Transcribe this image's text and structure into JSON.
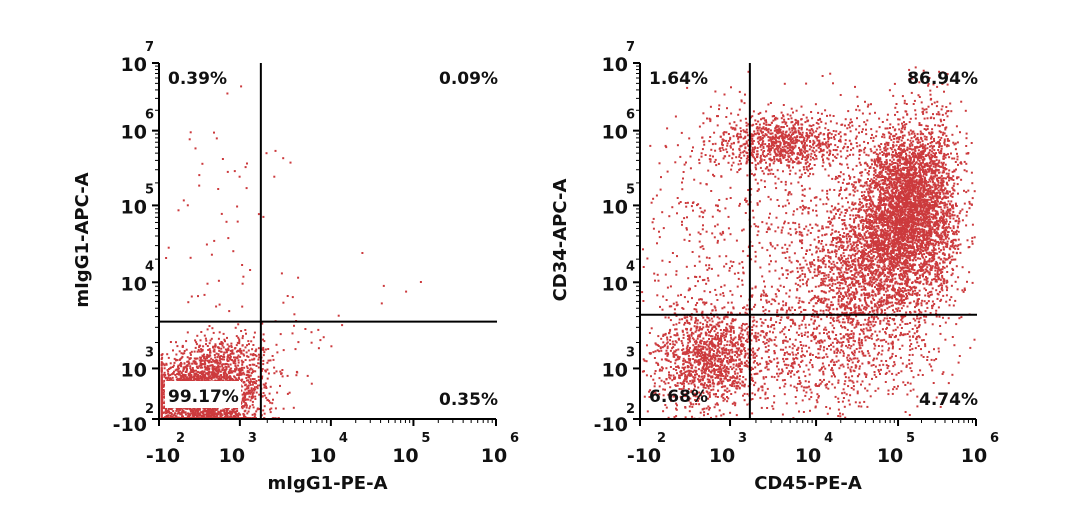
{
  "chart_data": [
    {
      "type": "scatter",
      "xlabel": "mIgG1-PE-A",
      "ylabel": "mIgG1-APC-A",
      "x_scale": "biexponential",
      "y_scale": "biexponential",
      "xlim": [
        -100,
        1000000
      ],
      "ylim": [
        -100,
        10000000
      ],
      "x_ticks": [
        {
          "base": "-10",
          "exp": "2"
        },
        {
          "base": "10",
          "exp": "3"
        },
        {
          "base": "10",
          "exp": "4"
        },
        {
          "base": "10",
          "exp": "5"
        },
        {
          "base": "10",
          "exp": "6"
        }
      ],
      "y_ticks": [
        {
          "base": "-10",
          "exp": "2"
        },
        {
          "base": "10",
          "exp": "3"
        },
        {
          "base": "10",
          "exp": "4"
        },
        {
          "base": "10",
          "exp": "5"
        },
        {
          "base": "10",
          "exp": "6"
        },
        {
          "base": "10",
          "exp": "7"
        }
      ],
      "gate": {
        "x": 1700,
        "y": 3500
      },
      "quadrants": {
        "upper_left": "0.39%",
        "upper_right": "0.09%",
        "lower_left": "99.17%",
        "lower_right": "0.35%"
      },
      "point_color": "#cc3a3d",
      "grid": false
    },
    {
      "type": "scatter",
      "xlabel": "CD45-PE-A",
      "ylabel": "CD34-APC-A",
      "x_scale": "biexponential",
      "y_scale": "biexponential",
      "xlim": [
        -100,
        1000000
      ],
      "ylim": [
        -100,
        10000000
      ],
      "x_ticks": [
        {
          "base": "-10",
          "exp": "2"
        },
        {
          "base": "10",
          "exp": "3"
        },
        {
          "base": "10",
          "exp": "4"
        },
        {
          "base": "10",
          "exp": "5"
        },
        {
          "base": "10",
          "exp": "6"
        }
      ],
      "y_ticks": [
        {
          "base": "-10",
          "exp": "2"
        },
        {
          "base": "10",
          "exp": "3"
        },
        {
          "base": "10",
          "exp": "4"
        },
        {
          "base": "10",
          "exp": "5"
        },
        {
          "base": "10",
          "exp": "6"
        },
        {
          "base": "10",
          "exp": "7"
        }
      ],
      "gate": {
        "x": 1700,
        "y": 4200
      },
      "quadrants": {
        "upper_left": "1.64%",
        "upper_right": "86.94%",
        "lower_left": "6.68%",
        "lower_right": "4.74%"
      },
      "point_color": "#cc3a3d",
      "grid": false
    }
  ]
}
